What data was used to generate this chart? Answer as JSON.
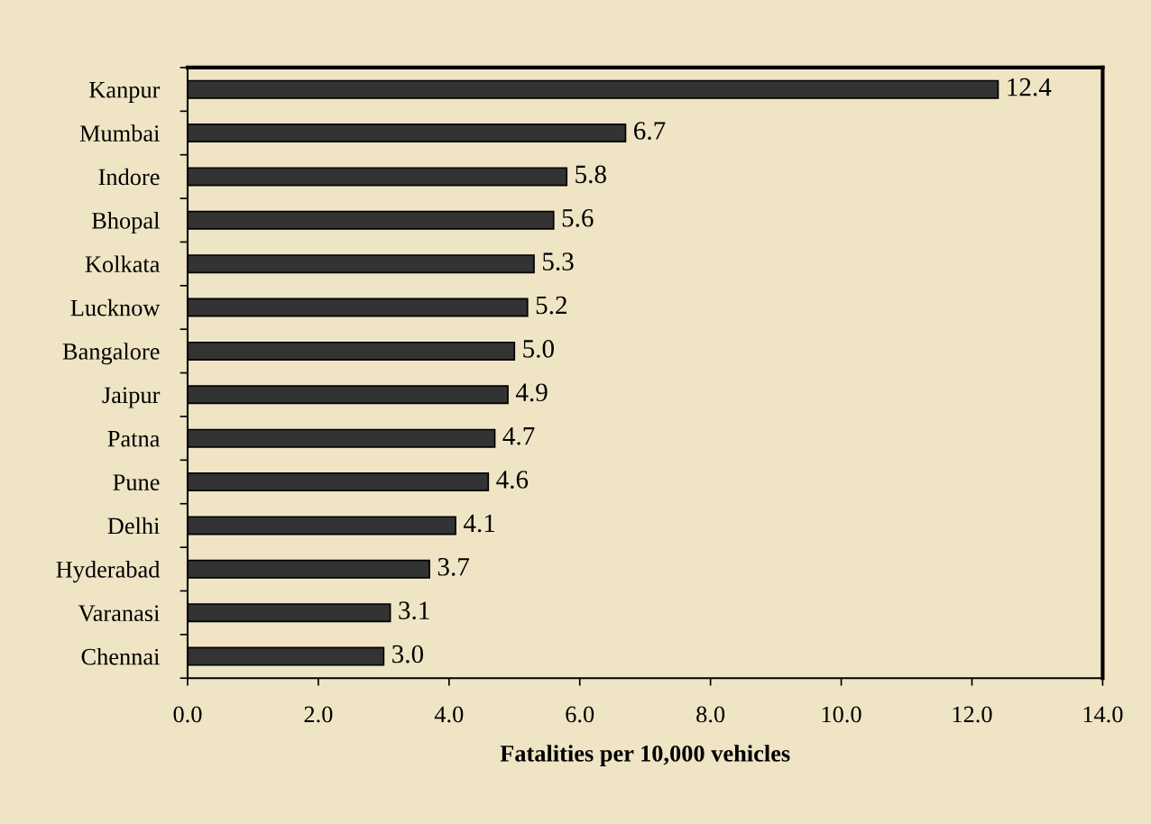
{
  "chart_data": {
    "type": "bar",
    "orientation": "horizontal",
    "xlabel": "Fatalities per 10,000 vehicles",
    "categories": [
      "Kanpur",
      "Mumbai",
      "Indore",
      "Bhopal",
      "Kolkata",
      "Lucknow",
      "Bangalore",
      "Jaipur",
      "Patna",
      "Pune",
      "Delhi",
      "Hyderabad",
      "Varanasi",
      "Chennai"
    ],
    "values": [
      12.4,
      6.7,
      5.8,
      5.6,
      5.3,
      5.2,
      5.0,
      4.9,
      4.7,
      4.6,
      4.1,
      3.7,
      3.1,
      3.0
    ],
    "value_labels": [
      "12.4",
      "6.7",
      "5.8",
      "5.6",
      "5.3",
      "5.2",
      "5.0",
      "4.9",
      "4.7",
      "4.6",
      "4.1",
      "3.7",
      "3.1",
      "3.0"
    ],
    "color": "#333333",
    "xlim": [
      0,
      14
    ],
    "xticks": [
      {
        "value": 0,
        "label": "0.0"
      },
      {
        "value": 2,
        "label": "2.0"
      },
      {
        "value": 4,
        "label": "4.0"
      },
      {
        "value": 6,
        "label": "6.0"
      },
      {
        "value": 8,
        "label": "8.0"
      },
      {
        "value": 10,
        "label": "10.0"
      },
      {
        "value": 12,
        "label": "12.0"
      },
      {
        "value": 14,
        "label": "14.0"
      }
    ],
    "grid": false,
    "legend": false
  }
}
